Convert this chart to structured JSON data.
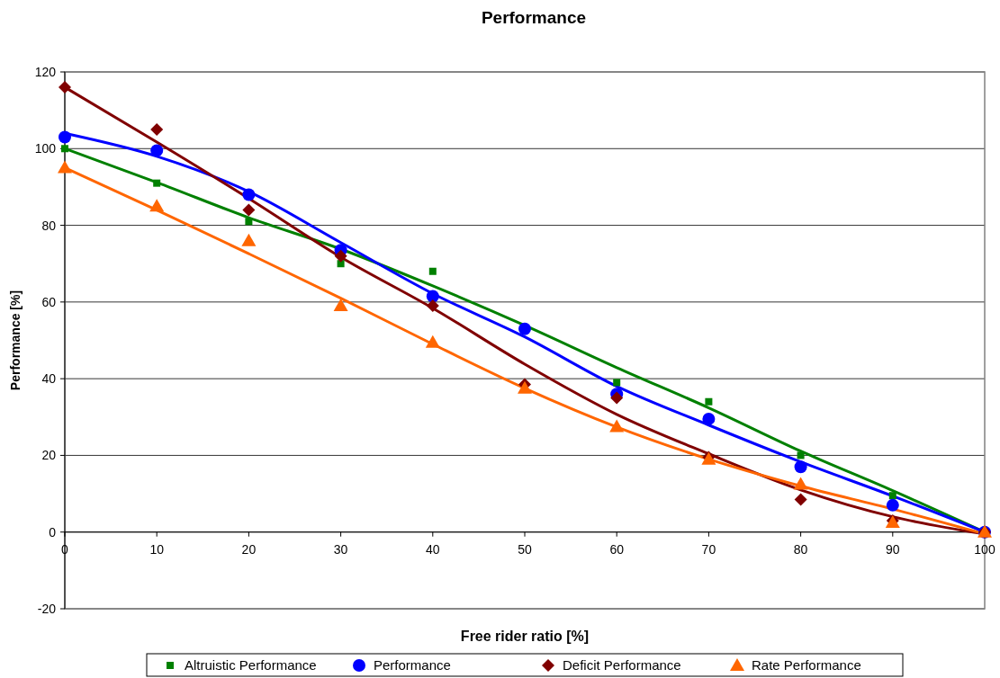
{
  "chart_data": {
    "type": "scatter",
    "title": "Performance",
    "xlabel": "Free rider ratio [%]",
    "ylabel": "Performance [%]",
    "x": [
      0,
      10,
      20,
      30,
      40,
      50,
      60,
      70,
      80,
      90,
      100
    ],
    "xlim": [
      0,
      100
    ],
    "xticks": [
      0,
      10,
      20,
      30,
      40,
      50,
      60,
      70,
      80,
      90,
      100
    ],
    "ylim": [
      -20,
      120
    ],
    "yticks": [
      -20,
      0,
      20,
      40,
      60,
      80,
      100,
      120
    ],
    "grid": "y",
    "legend": "bottom",
    "series": [
      {
        "name": "Altruistic Performance",
        "color": "#008000",
        "marker": "square",
        "values": [
          100,
          91,
          81,
          70,
          68,
          null,
          39,
          34,
          20,
          9.5,
          null
        ]
      },
      {
        "name": "Performance",
        "color": "#0000ff",
        "marker": "circle",
        "values": [
          103,
          99.5,
          88,
          73.5,
          61.5,
          53,
          36,
          29.5,
          17,
          7,
          0
        ]
      },
      {
        "name": "Deficit Performance",
        "color": "#800000",
        "marker": "diamond",
        "values": [
          116,
          105,
          84,
          72,
          59,
          38.5,
          35,
          19.5,
          8.5,
          3,
          0
        ]
      },
      {
        "name": "Rate Performance",
        "color": "#ff6600",
        "marker": "triangle",
        "values": [
          95,
          85,
          76,
          59,
          49.5,
          37.5,
          27.5,
          19,
          12.5,
          2.5,
          0
        ]
      },
      {
        "type": "line",
        "color": "#008000",
        "marker": "none",
        "values": [
          100,
          91.2,
          82,
          73.8,
          64.2,
          53.9,
          42.9,
          32.4,
          21.1,
          10.8,
          0
        ]
      },
      {
        "type": "line",
        "color": "#0000ff",
        "marker": "none",
        "values": [
          104,
          98,
          88.8,
          75.5,
          62.2,
          50.9,
          38,
          27.9,
          18.3,
          9.4,
          0
        ]
      },
      {
        "type": "line",
        "color": "#800000",
        "marker": "none",
        "values": [
          116,
          101.7,
          87,
          71.7,
          58.4,
          43.8,
          30.7,
          20.4,
          11,
          4,
          -0.5
        ]
      },
      {
        "type": "line",
        "color": "#ff6600",
        "marker": "none",
        "values": [
          95,
          84,
          72.6,
          61,
          49,
          37.5,
          27.4,
          19,
          12,
          6,
          -0.5
        ]
      }
    ]
  }
}
